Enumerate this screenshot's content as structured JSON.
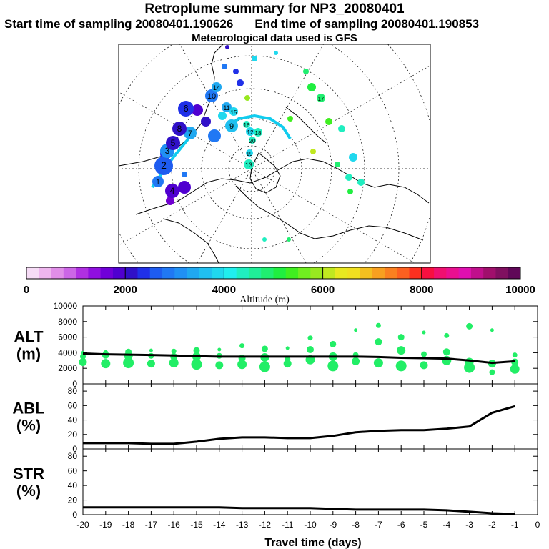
{
  "header": {
    "title": "Retroplume summary for NP3_20080401",
    "start_label": "Start time of sampling 20080401.190626",
    "end_label": "End time of sampling 20080401.190853",
    "met_label": "Meteorological data used is GFS"
  },
  "colors": {
    "plume_green": "#22ee66",
    "mean_line": "#000000",
    "track_cyan": "#11ccee",
    "colorbar": [
      "#f6dcf6",
      "#eeb6ee",
      "#e08ee8",
      "#cc66e6",
      "#b030e2",
      "#9010e0",
      "#7000d8",
      "#5000d0",
      "#3010c8",
      "#2030e8",
      "#1e5cf0",
      "#2078f4",
      "#2090f4",
      "#20a8f0",
      "#20c0f0",
      "#20d8ee",
      "#20eeee",
      "#20eec0",
      "#20ee98",
      "#20ee70",
      "#20ee40",
      "#40ee20",
      "#70ee20",
      "#98e820",
      "#c0e820",
      "#e8e820",
      "#f0e020",
      "#f4c020",
      "#f8a020",
      "#fa8020",
      "#fc6020",
      "#fc3020",
      "#f81040",
      "#f01070",
      "#ea1090",
      "#e010b0",
      "#c0108c",
      "#a0106c",
      "#801060",
      "#600858"
    ]
  },
  "map": {
    "colorbar_ticks": [
      "0",
      "2000",
      "4000",
      "6000",
      "8000",
      "10000"
    ],
    "colorbar_label": "Altitude (m)",
    "plume_markers": [
      {
        "label": "2",
        "color": "#1e5cf0"
      },
      {
        "label": "1",
        "color": "#2078f4"
      },
      {
        "label": "3",
        "color": "#2090f4"
      },
      {
        "label": "4",
        "color": "#5000d0"
      },
      {
        "label": "5",
        "color": "#3010c8"
      },
      {
        "label": "6",
        "color": "#2030e8"
      },
      {
        "label": "7",
        "color": "#20a8f0"
      },
      {
        "label": "8",
        "color": "#3010c8"
      },
      {
        "label": "9",
        "color": "#20c0f0"
      },
      {
        "label": "10",
        "color": "#2078f4"
      },
      {
        "label": "11",
        "color": "#20a8f0"
      },
      {
        "label": "12",
        "color": "#20d8ee"
      },
      {
        "label": "13",
        "color": "#20eec0"
      },
      {
        "label": "14",
        "color": "#20a8f0"
      },
      {
        "label": "15",
        "color": "#20d8ee"
      },
      {
        "label": "16",
        "color": "#20eec0"
      },
      {
        "label": "17",
        "color": "#20ee70"
      },
      {
        "label": "18",
        "color": "#20eec0"
      },
      {
        "label": "19",
        "color": "#20d8ee"
      },
      {
        "label": "20",
        "color": "#20eec0"
      }
    ]
  },
  "chart_data": [
    {
      "type": "scatter",
      "panel": "ALT",
      "ylabel": "ALT\n(m)",
      "ylabel_lines": [
        "ALT",
        "(m)"
      ],
      "ylim": [
        0,
        10000
      ],
      "yticks": [
        "0",
        "2000",
        "4000",
        "6000",
        "8000",
        "10000"
      ],
      "xlim": [
        -20,
        0
      ],
      "x": [
        -20,
        -19,
        -18,
        -17,
        -16,
        -15,
        -14,
        -13,
        -12,
        -11,
        -10,
        -9,
        -8,
        -7,
        -6,
        -5,
        -4,
        -3,
        -2,
        -1
      ],
      "mean_altitude": [
        3900,
        3800,
        3750,
        3700,
        3650,
        3550,
        3500,
        3500,
        3500,
        3500,
        3500,
        3500,
        3500,
        3450,
        3350,
        3300,
        3250,
        3000,
        2700,
        2900
      ],
      "cluster_altitudes": [
        [
          4000,
          2800,
          3500
        ],
        [
          4000,
          2600,
          3700
        ],
        [
          4100,
          2700,
          3600
        ],
        [
          4300,
          2600,
          3600
        ],
        [
          4200,
          2700,
          3500
        ],
        [
          4300,
          2500,
          3500
        ],
        [
          4400,
          2400,
          3600
        ],
        [
          4900,
          2500,
          3300
        ],
        [
          4500,
          2200,
          3400
        ],
        [
          4600,
          2600,
          3200
        ],
        [
          5900,
          3100,
          4400
        ],
        [
          5100,
          2300,
          3500
        ],
        [
          6900,
          2900,
          3700
        ],
        [
          7500,
          2700,
          5400
        ],
        [
          6000,
          2300,
          4300
        ],
        [
          6600,
          2400,
          3800
        ],
        [
          6200,
          3000,
          4100
        ],
        [
          7400,
          2100,
          2800
        ],
        [
          6900,
          2600,
          1500
        ],
        [
          3700,
          1900,
          2800
        ]
      ]
    },
    {
      "type": "line",
      "panel": "ABL",
      "ylabel_lines": [
        "ABL",
        "(%)"
      ],
      "ylim": [
        0,
        90
      ],
      "yticks": [
        "0",
        "20",
        "40",
        "60",
        "80"
      ],
      "xlim": [
        -20,
        0
      ],
      "x": [
        -20,
        -19,
        -18,
        -17,
        -16,
        -15,
        -14,
        -13,
        -12,
        -11,
        -10,
        -9,
        -8,
        -7,
        -6,
        -5,
        -4,
        -3,
        -2,
        -1
      ],
      "values": [
        8,
        8,
        8,
        7,
        7,
        10,
        14,
        16,
        16,
        15,
        15,
        18,
        23,
        25,
        26,
        26,
        28,
        31,
        50,
        59
      ]
    },
    {
      "type": "line",
      "panel": "STR",
      "ylabel_lines": [
        "STR",
        "(%)"
      ],
      "ylim": [
        0,
        90
      ],
      "yticks": [
        "0",
        "20",
        "40",
        "60",
        "80"
      ],
      "xlim": [
        -20,
        0
      ],
      "x": [
        -20,
        -19,
        -18,
        -17,
        -16,
        -15,
        -14,
        -13,
        -12,
        -11,
        -10,
        -9,
        -8,
        -7,
        -6,
        -5,
        -4,
        -3,
        -2,
        -1
      ],
      "values": [
        10,
        10,
        10,
        10,
        10,
        10,
        10,
        9,
        9,
        9,
        9,
        8,
        7,
        7,
        7,
        7,
        6,
        4,
        2,
        1
      ],
      "xlabel": "Travel time (days)",
      "xticks": [
        "-20",
        "-19",
        "-18",
        "-17",
        "-16",
        "-15",
        "-14",
        "-13",
        "-12",
        "-11",
        "-10",
        "-9",
        "-8",
        "-7",
        "-6",
        "-5",
        "-4",
        "-3",
        "-2",
        "-1",
        "0"
      ]
    }
  ]
}
